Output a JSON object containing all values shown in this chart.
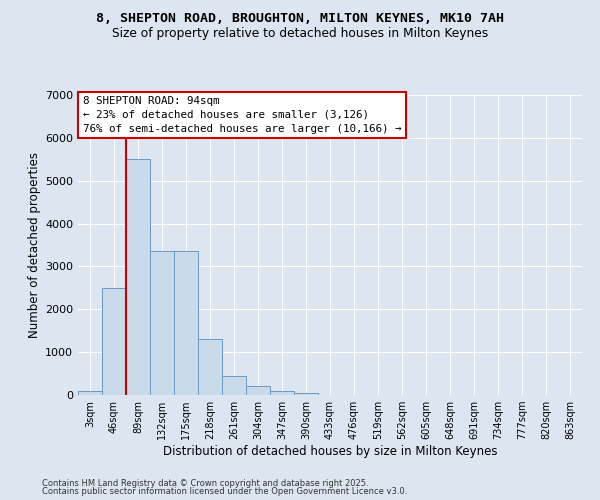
{
  "title_line1": "8, SHEPTON ROAD, BROUGHTON, MILTON KEYNES, MK10 7AH",
  "title_line2": "Size of property relative to detached houses in Milton Keynes",
  "xlabel": "Distribution of detached houses by size in Milton Keynes",
  "ylabel": "Number of detached properties",
  "categories": [
    "3sqm",
    "46sqm",
    "89sqm",
    "132sqm",
    "175sqm",
    "218sqm",
    "261sqm",
    "304sqm",
    "347sqm",
    "390sqm",
    "433sqm",
    "476sqm",
    "519sqm",
    "562sqm",
    "605sqm",
    "648sqm",
    "691sqm",
    "734sqm",
    "777sqm",
    "820sqm",
    "863sqm"
  ],
  "values": [
    100,
    2500,
    5500,
    3350,
    3350,
    1300,
    450,
    220,
    100,
    50,
    0,
    0,
    0,
    0,
    0,
    0,
    0,
    0,
    0,
    0,
    0
  ],
  "bar_color": "#c9daea",
  "bar_edge_color": "#6899c4",
  "vline_color": "#cc0000",
  "vline_bar_index": 2,
  "annotation_text": "8 SHEPTON ROAD: 94sqm\n← 23% of detached houses are smaller (3,126)\n76% of semi-detached houses are larger (10,166) →",
  "annotation_box_facecolor": "#ffffff",
  "annotation_box_edgecolor": "#cc0000",
  "ylim": [
    0,
    7000
  ],
  "yticks": [
    0,
    1000,
    2000,
    3000,
    4000,
    5000,
    6000,
    7000
  ],
  "bg_color": "#dde6f0",
  "footer_line1": "Contains HM Land Registry data © Crown copyright and database right 2025.",
  "footer_line2": "Contains public sector information licensed under the Open Government Licence v3.0."
}
